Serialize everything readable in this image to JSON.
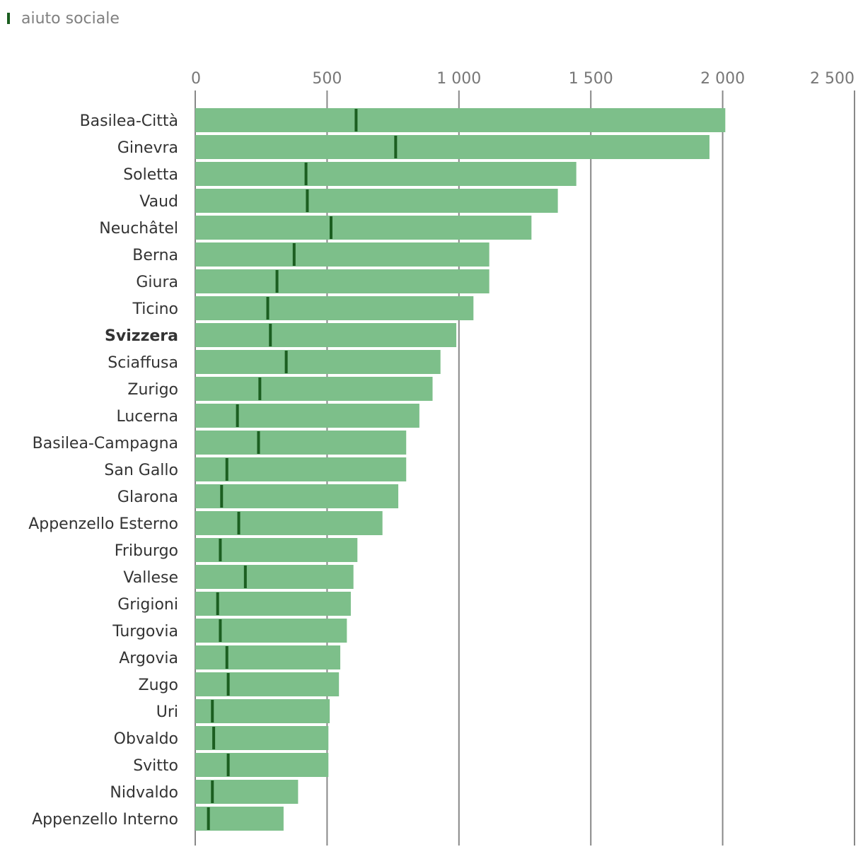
{
  "legend": {
    "label": "aiuto sociale",
    "marker_color": "#1b5e20"
  },
  "colors": {
    "bar": "#7dbf8a",
    "marker": "#1b5e20",
    "grid": "#888888"
  },
  "chart_data": {
    "type": "bar",
    "orientation": "horizontal",
    "xlim": [
      0,
      2500
    ],
    "ticks": [
      0,
      500,
      1000,
      1500,
      2000,
      2500
    ],
    "tick_labels": [
      "0",
      "500",
      "1 000",
      "1 500",
      "2 000",
      "2 500"
    ],
    "highlight": "Svizzera",
    "categories": [
      "Basilea-Città",
      "Ginevra",
      "Soletta",
      "Vaud",
      "Neuchâtel",
      "Berna",
      "Giura",
      "Ticino",
      "Svizzera",
      "Sciaffusa",
      "Zurigo",
      "Lucerna",
      "Basilea-Campagna",
      "San Gallo",
      "Glarona",
      "Appenzello Esterno",
      "Friburgo",
      "Vallese",
      "Grigioni",
      "Turgovia",
      "Argovia",
      "Zugo",
      "Uri",
      "Obvaldo",
      "Svitto",
      "Nidvaldo",
      "Appenzello Interno"
    ],
    "series": [
      {
        "values": [
          2010,
          1950,
          1445,
          1375,
          1275,
          1115,
          1115,
          1055,
          990,
          930,
          900,
          850,
          800,
          800,
          770,
          710,
          615,
          600,
          590,
          575,
          550,
          545,
          510,
          505,
          505,
          390,
          335
        ]
      },
      {
        "name": "aiuto sociale",
        "values": [
          610,
          760,
          420,
          425,
          515,
          375,
          310,
          275,
          285,
          345,
          245,
          160,
          240,
          120,
          100,
          165,
          95,
          190,
          85,
          95,
          120,
          125,
          65,
          70,
          125,
          65,
          50
        ]
      }
    ]
  }
}
